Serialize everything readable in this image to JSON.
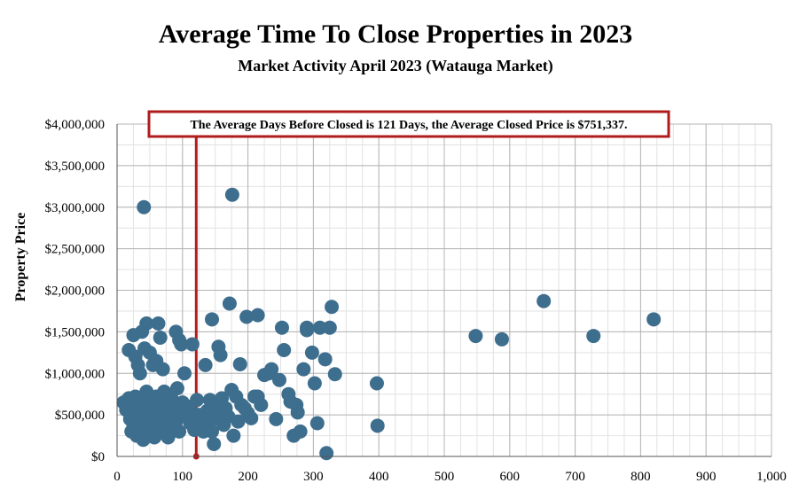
{
  "chart_data": {
    "type": "scatter",
    "title": "Average Time To Close Properties in 2023",
    "subtitle": "Market Activity April 2023 (Watauga Market)",
    "xlabel": "",
    "ylabel": "Property Price",
    "xlim": [
      0,
      1000
    ],
    "ylim": [
      0,
      4000000
    ],
    "x_ticks": [
      0,
      100,
      200,
      300,
      400,
      500,
      600,
      700,
      800,
      900,
      1000
    ],
    "x_tick_labels": [
      "0",
      "100",
      "200",
      "300",
      "400",
      "500",
      "600",
      "700",
      "800",
      "900",
      "1,000"
    ],
    "y_ticks": [
      0,
      500000,
      1000000,
      1500000,
      2000000,
      2500000,
      3000000,
      3500000,
      4000000
    ],
    "y_tick_labels": [
      "$0",
      "$500,000",
      "$1,000,000",
      "$1,500,000",
      "$2,000,000",
      "$2,500,000",
      "$3,000,000",
      "$3,500,000",
      "$4,000,000"
    ],
    "grid": true,
    "point_color": "#3e6e8e",
    "reference_line": {
      "x": 121,
      "color": "#b01c1c"
    },
    "annotation": "The Average Days Before Closed is 121 Days, the Average Closed Price is $751,337.",
    "points": [
      [
        41,
        3000000
      ],
      [
        176,
        3150000
      ],
      [
        10,
        650000
      ],
      [
        14,
        560000
      ],
      [
        18,
        700000
      ],
      [
        20,
        450000
      ],
      [
        22,
        300000
      ],
      [
        24,
        600000
      ],
      [
        25,
        380000
      ],
      [
        27,
        520000
      ],
      [
        28,
        720000
      ],
      [
        30,
        250000
      ],
      [
        32,
        640000
      ],
      [
        34,
        420000
      ],
      [
        35,
        560000
      ],
      [
        36,
        300000
      ],
      [
        38,
        700000
      ],
      [
        40,
        200000
      ],
      [
        41,
        480000
      ],
      [
        42,
        620000
      ],
      [
        44,
        350000
      ],
      [
        45,
        780000
      ],
      [
        46,
        250000
      ],
      [
        48,
        540000
      ],
      [
        50,
        420000
      ],
      [
        52,
        680000
      ],
      [
        54,
        300000
      ],
      [
        55,
        590000
      ],
      [
        57,
        230000
      ],
      [
        58,
        460000
      ],
      [
        60,
        720000
      ],
      [
        62,
        350000
      ],
      [
        64,
        520000
      ],
      [
        65,
        280000
      ],
      [
        67,
        640000
      ],
      [
        70,
        420000
      ],
      [
        72,
        780000
      ],
      [
        74,
        300000
      ],
      [
        76,
        560000
      ],
      [
        78,
        230000
      ],
      [
        80,
        480000
      ],
      [
        83,
        700000
      ],
      [
        86,
        350000
      ],
      [
        88,
        620000
      ],
      [
        90,
        420000
      ],
      [
        92,
        820000
      ],
      [
        95,
        300000
      ],
      [
        98,
        560000
      ],
      [
        100,
        650000
      ],
      [
        104,
        480000
      ],
      [
        108,
        600000
      ],
      [
        112,
        400000
      ],
      [
        115,
        520000
      ],
      [
        118,
        320000
      ],
      [
        122,
        680000
      ],
      [
        126,
        500000
      ],
      [
        130,
        450000
      ],
      [
        132,
        300000
      ],
      [
        135,
        380000
      ],
      [
        138,
        550000
      ],
      [
        140,
        420000
      ],
      [
        142,
        680000
      ],
      [
        145,
        300000
      ],
      [
        148,
        150000
      ],
      [
        150,
        500000
      ],
      [
        152,
        560000
      ],
      [
        155,
        450000
      ],
      [
        158,
        520000
      ],
      [
        160,
        700000
      ],
      [
        163,
        380000
      ],
      [
        166,
        580000
      ],
      [
        170,
        480000
      ],
      [
        175,
        800000
      ],
      [
        178,
        250000
      ],
      [
        182,
        720000
      ],
      [
        185,
        420000
      ],
      [
        190,
        620000
      ],
      [
        195,
        580000
      ],
      [
        200,
        520000
      ],
      [
        205,
        460000
      ],
      [
        210,
        720000
      ],
      [
        215,
        720000
      ],
      [
        220,
        620000
      ],
      [
        225,
        980000
      ],
      [
        232,
        1000000
      ],
      [
        236,
        1050000
      ],
      [
        243,
        450000
      ],
      [
        248,
        920000
      ],
      [
        252,
        1550000
      ],
      [
        255,
        1280000
      ],
      [
        262,
        750000
      ],
      [
        265,
        660000
      ],
      [
        270,
        250000
      ],
      [
        274,
        620000
      ],
      [
        276,
        530000
      ],
      [
        280,
        300000
      ],
      [
        285,
        1050000
      ],
      [
        290,
        1550000
      ],
      [
        298,
        1250000
      ],
      [
        302,
        880000
      ],
      [
        306,
        400000
      ],
      [
        310,
        1550000
      ],
      [
        318,
        1170000
      ],
      [
        320,
        40000
      ],
      [
        325,
        1550000
      ],
      [
        328,
        1800000
      ],
      [
        333,
        990000
      ],
      [
        397,
        880000
      ],
      [
        398,
        370000
      ],
      [
        18,
        1280000
      ],
      [
        25,
        1460000
      ],
      [
        28,
        1200000
      ],
      [
        32,
        1100000
      ],
      [
        35,
        1000000
      ],
      [
        38,
        1500000
      ],
      [
        42,
        1300000
      ],
      [
        45,
        1600000
      ],
      [
        50,
        1250000
      ],
      [
        55,
        1100000
      ],
      [
        60,
        1150000
      ],
      [
        63,
        1600000
      ],
      [
        66,
        1430000
      ],
      [
        70,
        1050000
      ],
      [
        90,
        1500000
      ],
      [
        95,
        1400000
      ],
      [
        98,
        1350000
      ],
      [
        103,
        1000000
      ],
      [
        115,
        1350000
      ],
      [
        135,
        1100000
      ],
      [
        145,
        1650000
      ],
      [
        155,
        1320000
      ],
      [
        158,
        1220000
      ],
      [
        172,
        1840000
      ],
      [
        188,
        1110000
      ],
      [
        198,
        1680000
      ],
      [
        215,
        1700000
      ],
      [
        290,
        1520000
      ],
      [
        548,
        1450000
      ],
      [
        588,
        1410000
      ],
      [
        652,
        1870000
      ],
      [
        728,
        1450000
      ],
      [
        820,
        1650000
      ]
    ]
  }
}
